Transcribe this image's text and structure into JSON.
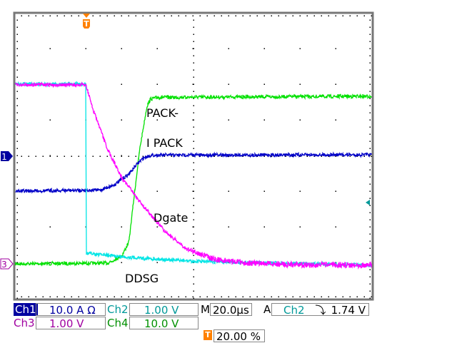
{
  "chart_data": {
    "type": "line",
    "x_unit": "µs",
    "y_unit": "div",
    "xlim": [
      -40,
      160
    ],
    "ylim": [
      -4,
      4
    ],
    "grid": true,
    "series": [
      {
        "name": "DDSG",
        "channel": "Ch2",
        "color": "#00e5e5",
        "x": [
          -40,
          0,
          0.2,
          20,
          60,
          160
        ],
        "y": [
          2.02,
          2.02,
          -2.72,
          -2.82,
          -2.95,
          -3.06
        ]
      },
      {
        "name": "Dgate",
        "channel": "Ch3",
        "color": "#ff00ff",
        "x": [
          -40,
          0,
          4,
          12,
          20,
          32,
          44,
          56,
          72,
          92,
          120,
          160
        ],
        "y": [
          2.0,
          2.0,
          1.3,
          0.2,
          -0.6,
          -1.4,
          -2.1,
          -2.6,
          -2.9,
          -3.0,
          -3.05,
          -3.05
        ]
      },
      {
        "name": "PACK-",
        "channel": "Ch4",
        "color": "#00e000",
        "x": [
          -40,
          12,
          20,
          24,
          26,
          30,
          34,
          36,
          40,
          160
        ],
        "y": [
          -3.02,
          -3.0,
          -2.8,
          -2.4,
          -1.5,
          0.2,
          1.4,
          1.6,
          1.65,
          1.68
        ]
      },
      {
        "name": "I PACK",
        "channel": "Ch1",
        "color": "#0000c8",
        "x": [
          -40,
          8,
          16,
          24,
          28,
          32,
          36,
          40,
          160
        ],
        "y": [
          -0.98,
          -0.95,
          -0.8,
          -0.5,
          -0.25,
          -0.05,
          0.02,
          0.03,
          0.04
        ]
      }
    ]
  },
  "labels": {
    "pack": "PACK-",
    "ipack": "I PACK",
    "dgate": "Dgate",
    "ddsg": "DDSG"
  },
  "markers": {
    "ch1": "1",
    "ch3": "3",
    "trigger": "T"
  },
  "readout": {
    "ch1": "Ch1",
    "ch1_scale": "10.0 A Ω",
    "ch2": "Ch2",
    "ch2_scale": "1.00 V",
    "ch3": "Ch3",
    "ch3_scale": "1.00 V",
    "ch4": "Ch4",
    "ch4_scale": "10.0 V",
    "m": "M",
    "timebase": "20.0µs",
    "a": "A",
    "trig_src": "Ch2",
    "trig_slope": "⤵",
    "trig_level": "1.74 V",
    "trig_pos": "20.00 %"
  },
  "colors": {
    "ch1": "#0000a0",
    "ch2": "#009999",
    "ch3": "#a000a0",
    "ch4": "#009000",
    "trigger": "#ff8000"
  }
}
